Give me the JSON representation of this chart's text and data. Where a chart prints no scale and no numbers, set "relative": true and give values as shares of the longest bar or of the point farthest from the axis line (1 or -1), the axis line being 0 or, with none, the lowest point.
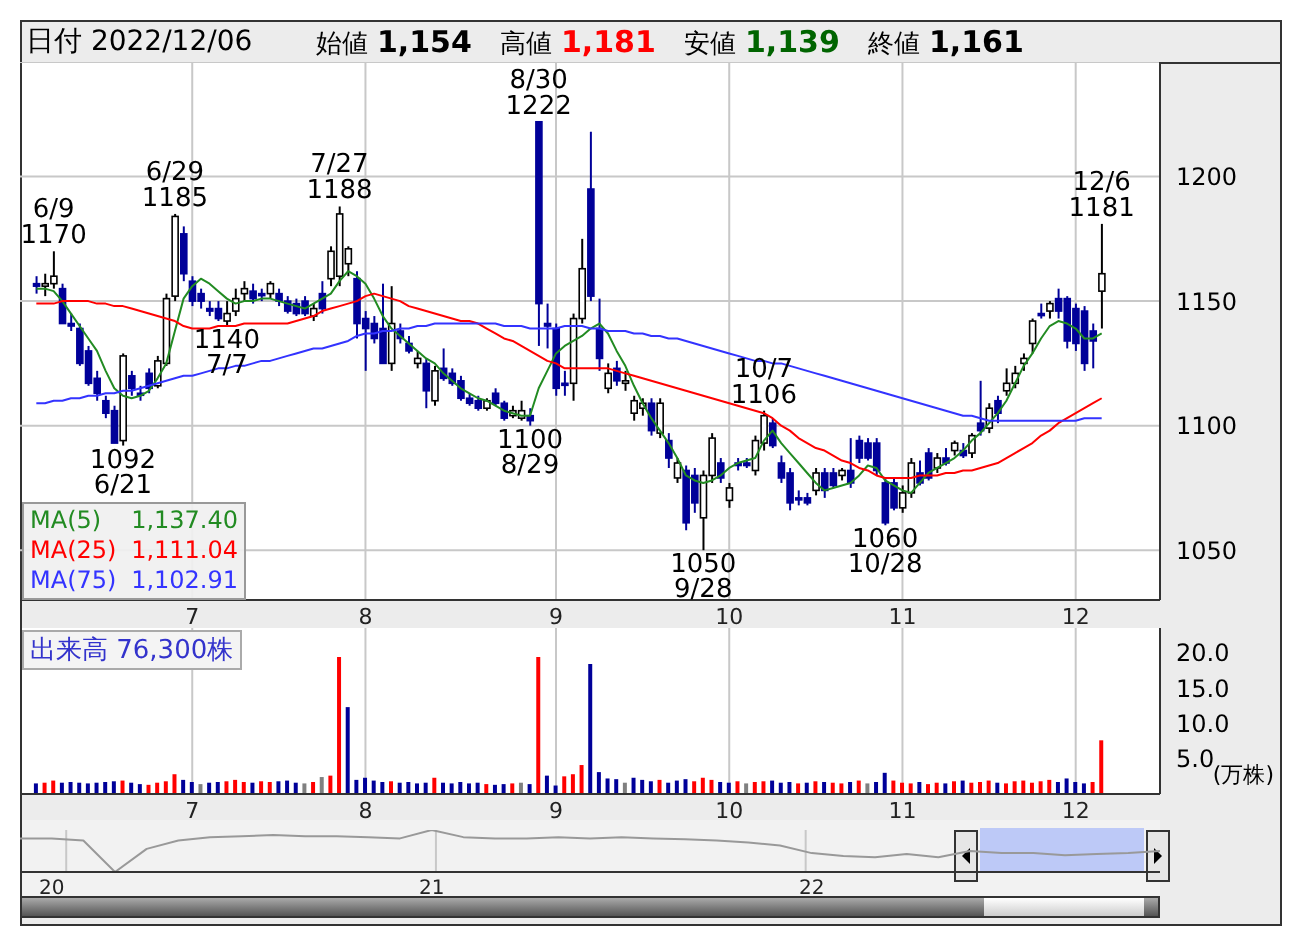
{
  "chart_data": [
    {
      "type": "candlestick",
      "title": "日付 2022/12/06",
      "annotations": [
        "始値 1,154",
        "高値 1,181",
        "安値 1,139",
        "終値 1,161",
        {
          "text": "6/9\n1170",
          "y": 1170
        },
        {
          "text": "1092\n6/21",
          "y": 1092
        },
        {
          "text": "6/29\n1185",
          "y": 1185
        },
        {
          "text": "1140\n7/7",
          "y": 1140
        },
        {
          "text": "7/27\n1188",
          "y": 1188
        },
        {
          "text": "1100\n8/29",
          "y": 1100
        },
        {
          "text": "8/30\n1222",
          "y": 1222
        },
        {
          "text": "1050\n9/28",
          "y": 1050
        },
        {
          "text": "10/7\n1106",
          "y": 1106
        },
        {
          "text": "1060\n10/28",
          "y": 1060
        },
        {
          "text": "12/6\n1181",
          "y": 1181
        }
      ],
      "categories": [
        null,
        null,
        null,
        null,
        null,
        null,
        null,
        null,
        null,
        null,
        null,
        null,
        null,
        null,
        null,
        null,
        null,
        null,
        "7",
        null,
        null,
        null,
        null,
        null,
        null,
        null,
        null,
        null,
        null,
        null,
        null,
        null,
        null,
        null,
        null,
        null,
        null,
        null,
        "8",
        null,
        null,
        null,
        null,
        null,
        null,
        null,
        null,
        null,
        null,
        null,
        null,
        null,
        null,
        null,
        null,
        null,
        null,
        null,
        null,
        null,
        "9",
        null,
        null,
        null,
        null,
        null,
        null,
        null,
        null,
        null,
        null,
        null,
        null,
        null,
        null,
        null,
        null,
        null,
        null,
        null,
        "10",
        null,
        null,
        null,
        null,
        null,
        null,
        null,
        null,
        null,
        null,
        null,
        null,
        null,
        null,
        null,
        null,
        null,
        null,
        null,
        "11",
        null,
        null,
        null,
        null,
        null,
        null,
        null,
        null,
        null,
        null,
        null,
        null,
        null,
        null,
        null,
        null,
        null,
        null,
        null,
        "12",
        null,
        null,
        null
      ],
      "ohlc": [
        [
          1157,
          1160,
          1153,
          1156
        ],
        [
          1156,
          1161,
          1152,
          1157
        ],
        [
          1157,
          1170,
          1155,
          1160
        ],
        [
          1155,
          1157,
          1141,
          1141
        ],
        [
          1141,
          1145,
          1138,
          1140
        ],
        [
          1139,
          1141,
          1124,
          1125
        ],
        [
          1130,
          1132,
          1116,
          1117
        ],
        [
          1119,
          1122,
          1110,
          1113
        ],
        [
          1110,
          1112,
          1103,
          1105
        ],
        [
          1106,
          1108,
          1093,
          1093
        ],
        [
          1094,
          1129,
          1092,
          1128
        ],
        [
          1120,
          1122,
          1112,
          1115
        ],
        [
          1113,
          1116,
          1110,
          1113
        ],
        [
          1121,
          1123,
          1113,
          1115
        ],
        [
          1116,
          1128,
          1115,
          1126
        ],
        [
          1125,
          1153,
          1124,
          1151
        ],
        [
          1152,
          1185,
          1150,
          1184
        ],
        [
          1177,
          1180,
          1158,
          1161
        ],
        [
          1158,
          1160,
          1148,
          1150
        ],
        [
          1153,
          1155,
          1147,
          1150
        ],
        [
          1147,
          1150,
          1144,
          1146
        ],
        [
          1147,
          1150,
          1142,
          1143
        ],
        [
          1142,
          1150,
          1140,
          1145
        ],
        [
          1146,
          1155,
          1144,
          1151
        ],
        [
          1153,
          1158,
          1150,
          1155
        ],
        [
          1154,
          1157,
          1149,
          1151
        ],
        [
          1153,
          1155,
          1150,
          1153
        ],
        [
          1153,
          1158,
          1151,
          1157
        ],
        [
          1153,
          1155,
          1148,
          1150
        ],
        [
          1150,
          1152,
          1145,
          1146
        ],
        [
          1149,
          1151,
          1144,
          1145
        ],
        [
          1150,
          1152,
          1144,
          1145
        ],
        [
          1144,
          1149,
          1142,
          1147
        ],
        [
          1153,
          1158,
          1145,
          1147
        ],
        [
          1159,
          1172,
          1156,
          1170
        ],
        [
          1160,
          1188,
          1156,
          1185
        ],
        [
          1165,
          1172,
          1160,
          1171
        ],
        [
          1159,
          1162,
          1135,
          1141
        ],
        [
          1143,
          1146,
          1122,
          1139
        ],
        [
          1141,
          1144,
          1133,
          1135
        ],
        [
          1139,
          1157,
          1125,
          1125
        ],
        [
          1125,
          1156,
          1122,
          1141
        ],
        [
          1138,
          1141,
          1133,
          1135
        ],
        [
          1133,
          1136,
          1129,
          1130
        ],
        [
          1125,
          1130,
          1123,
          1127
        ],
        [
          1125,
          1127,
          1107,
          1114
        ],
        [
          1110,
          1124,
          1108,
          1122
        ],
        [
          1123,
          1131,
          1118,
          1119
        ],
        [
          1121,
          1123,
          1116,
          1117
        ],
        [
          1118,
          1120,
          1110,
          1111
        ],
        [
          1111,
          1113,
          1108,
          1109
        ],
        [
          1110,
          1112,
          1106,
          1107
        ],
        [
          1107,
          1111,
          1106,
          1110
        ],
        [
          1113,
          1115,
          1108,
          1109
        ],
        [
          1109,
          1110,
          1102,
          1103
        ],
        [
          1104,
          1108,
          1103,
          1106
        ],
        [
          1103,
          1110,
          1102,
          1106
        ],
        [
          1104,
          1107,
          1100,
          1102
        ],
        [
          1222,
          1222,
          1132,
          1149
        ],
        [
          1141,
          1149,
          1131,
          1140
        ],
        [
          1139,
          1141,
          1112,
          1115
        ],
        [
          1117,
          1122,
          1112,
          1117
        ],
        [
          1117,
          1145,
          1110,
          1143
        ],
        [
          1143,
          1175,
          1141,
          1163
        ],
        [
          1195,
          1218,
          1150,
          1152
        ],
        [
          1139,
          1151,
          1122,
          1127
        ],
        [
          1115,
          1125,
          1113,
          1121
        ],
        [
          1123,
          1126,
          1116,
          1118
        ],
        [
          1117,
          1122,
          1114,
          1118
        ],
        [
          1105,
          1112,
          1102,
          1110
        ],
        [
          1107,
          1111,
          1104,
          1109
        ],
        [
          1109,
          1111,
          1096,
          1098
        ],
        [
          1097,
          1111,
          1095,
          1109
        ],
        [
          1094,
          1097,
          1083,
          1087
        ],
        [
          1079,
          1087,
          1077,
          1085
        ],
        [
          1082,
          1084,
          1058,
          1061
        ],
        [
          1080,
          1083,
          1065,
          1069
        ],
        [
          1063,
          1082,
          1050,
          1080
        ],
        [
          1080,
          1097,
          1077,
          1095
        ],
        [
          1085,
          1087,
          1077,
          1079
        ],
        [
          1070,
          1077,
          1067,
          1075
        ],
        [
          1085,
          1087,
          1082,
          1084
        ],
        [
          1085,
          1087,
          1083,
          1084
        ],
        [
          1082,
          1096,
          1080,
          1094
        ],
        [
          1093,
          1106,
          1090,
          1104
        ],
        [
          1101,
          1103,
          1091,
          1092
        ],
        [
          1085,
          1088,
          1077,
          1079
        ],
        [
          1081,
          1083,
          1066,
          1069
        ],
        [
          1071,
          1074,
          1068,
          1071
        ],
        [
          1071,
          1073,
          1068,
          1069
        ],
        [
          1074,
          1083,
          1072,
          1081
        ],
        [
          1081,
          1083,
          1071,
          1074
        ],
        [
          1081,
          1083,
          1075,
          1076
        ],
        [
          1080,
          1083,
          1078,
          1082
        ],
        [
          1082,
          1095,
          1075,
          1077
        ],
        [
          1094,
          1096,
          1085,
          1087
        ],
        [
          1093,
          1095,
          1086,
          1087
        ],
        [
          1093,
          1095,
          1080,
          1082
        ],
        [
          1077,
          1079,
          1060,
          1061
        ],
        [
          1077,
          1079,
          1066,
          1067
        ],
        [
          1067,
          1076,
          1065,
          1073
        ],
        [
          1073,
          1087,
          1071,
          1085
        ],
        [
          1081,
          1086,
          1076,
          1077
        ],
        [
          1089,
          1091,
          1078,
          1079
        ],
        [
          1083,
          1089,
          1081,
          1087
        ],
        [
          1087,
          1091,
          1084,
          1085
        ],
        [
          1090,
          1094,
          1088,
          1093
        ],
        [
          1090,
          1093,
          1087,
          1088
        ],
        [
          1089,
          1097,
          1087,
          1096
        ],
        [
          1101,
          1118,
          1096,
          1098
        ],
        [
          1099,
          1109,
          1097,
          1107
        ],
        [
          1110,
          1112,
          1101,
          1105
        ],
        [
          1114,
          1123,
          1112,
          1117
        ],
        [
          1117,
          1124,
          1115,
          1121
        ],
        [
          1125,
          1129,
          1122,
          1127
        ],
        [
          1133,
          1143,
          1129,
          1142
        ],
        [
          1145,
          1149,
          1143,
          1145
        ],
        [
          1146,
          1150,
          1143,
          1149
        ],
        [
          1151,
          1155,
          1143,
          1146
        ],
        [
          1151,
          1152,
          1131,
          1134
        ],
        [
          1147,
          1149,
          1130,
          1133
        ],
        [
          1146,
          1148,
          1122,
          1125
        ],
        [
          1138,
          1141,
          1123,
          1134
        ],
        [
          1154,
          1181,
          1139,
          1161
        ]
      ],
      "series": [
        {
          "name": "MA(5) 1,137.40",
          "type": "line",
          "color": "#228b22",
          "values": [
            1155,
            1155,
            1154,
            1150,
            1145,
            1140,
            1135,
            1130,
            1122,
            1115,
            1112,
            1111,
            1112,
            1114,
            1119,
            1125,
            1138,
            1151,
            1156,
            1159,
            1157,
            1154,
            1151,
            1149,
            1150,
            1150,
            1151,
            1151,
            1150,
            1149,
            1148,
            1147,
            1149,
            1151,
            1153,
            1158,
            1162,
            1160,
            1157,
            1151,
            1144,
            1139,
            1136,
            1133,
            1130,
            1127,
            1125,
            1121,
            1118,
            1115,
            1113,
            1111,
            1110,
            1108,
            1106,
            1105,
            1104,
            1104,
            1115,
            1122,
            1129,
            1132,
            1134,
            1136,
            1139,
            1141,
            1137,
            1130,
            1124,
            1116,
            1109,
            1103,
            1098,
            1093,
            1087,
            1080,
            1078,
            1077,
            1078,
            1080,
            1083,
            1085,
            1086,
            1087,
            1094,
            1098,
            1093,
            1089,
            1085,
            1081,
            1077,
            1074,
            1075,
            1076,
            1077,
            1080,
            1084,
            1083,
            1078,
            1076,
            1074,
            1073,
            1077,
            1081,
            1083,
            1085,
            1087,
            1090,
            1094,
            1097,
            1101,
            1105,
            1110,
            1117,
            1124,
            1129,
            1135,
            1140,
            1142,
            1141,
            1139,
            1135,
            1135,
            1137
          ]
        },
        {
          "name": "MA(25) 1,111.04",
          "type": "line",
          "color": "#ff0000",
          "values": [
            1149,
            1149,
            1149,
            1150,
            1150,
            1150,
            1150,
            1149,
            1149,
            1148,
            1148,
            1147,
            1146,
            1145,
            1144,
            1143,
            1142,
            1140,
            1139,
            1139,
            1139,
            1140,
            1140,
            1140,
            1141,
            1141,
            1141,
            1141,
            1141,
            1141,
            1142,
            1143,
            1144,
            1146,
            1147,
            1148,
            1149,
            1150,
            1152,
            1153,
            1152,
            1151,
            1150,
            1148,
            1147,
            1146,
            1145,
            1144,
            1143,
            1142,
            1142,
            1141,
            1139,
            1137,
            1135,
            1134,
            1132,
            1130,
            1128,
            1126,
            1125,
            1123,
            1123,
            1123,
            1123,
            1123,
            1123,
            1122,
            1121,
            1120,
            1119,
            1118,
            1117,
            1116,
            1115,
            1114,
            1113,
            1112,
            1111,
            1110,
            1109,
            1108,
            1107,
            1106,
            1105,
            1103,
            1100,
            1098,
            1095,
            1093,
            1091,
            1090,
            1088,
            1086,
            1085,
            1083,
            1082,
            1080,
            1079,
            1079,
            1079,
            1079,
            1080,
            1080,
            1080,
            1081,
            1081,
            1082,
            1082,
            1083,
            1084,
            1085,
            1087,
            1089,
            1091,
            1093,
            1096,
            1098,
            1101,
            1103,
            1105,
            1107,
            1109,
            1111
          ]
        },
        {
          "name": "MA(75) 1,102.91",
          "type": "line",
          "color": "#3333ff",
          "values": [
            1109,
            1109,
            1110,
            1110,
            1111,
            1111,
            1112,
            1112,
            1113,
            1113,
            1114,
            1114,
            1115,
            1116,
            1117,
            1118,
            1119,
            1120,
            1120,
            1121,
            1122,
            1123,
            1123,
            1124,
            1124,
            1125,
            1126,
            1126,
            1127,
            1128,
            1129,
            1130,
            1131,
            1131,
            1132,
            1133,
            1134,
            1136,
            1137,
            1137,
            1138,
            1138,
            1139,
            1139,
            1140,
            1140,
            1141,
            1141,
            1141,
            1141,
            1141,
            1141,
            1141,
            1141,
            1140,
            1140,
            1140,
            1139,
            1139,
            1139,
            1139,
            1140,
            1140,
            1140,
            1139,
            1139,
            1138,
            1138,
            1138,
            1137,
            1137,
            1136,
            1136,
            1135,
            1135,
            1134,
            1133,
            1132,
            1131,
            1130,
            1129,
            1128,
            1127,
            1126,
            1126,
            1125,
            1125,
            1124,
            1123,
            1122,
            1121,
            1120,
            1119,
            1118,
            1117,
            1116,
            1115,
            1114,
            1113,
            1112,
            1111,
            1110,
            1109,
            1108,
            1107,
            1106,
            1105,
            1104,
            1104,
            1103,
            1102,
            1102,
            1102,
            1102,
            1102,
            1102,
            1102,
            1102,
            1102,
            1102,
            1102,
            1103,
            1103,
            1103
          ]
        }
      ],
      "ylim": [
        1030,
        1246
      ],
      "yticks": [
        1050,
        1100,
        1150,
        1200
      ],
      "grid": true,
      "legend": "bottom left"
    },
    {
      "type": "bar",
      "title": "出来高 76,300株",
      "ylabel": "(万株)",
      "categories": [
        null,
        null,
        null,
        null,
        null,
        null,
        null,
        null,
        null,
        null,
        null,
        null,
        null,
        null,
        null,
        null,
        null,
        null,
        "7",
        null,
        null,
        null,
        null,
        null,
        null,
        null,
        null,
        null,
        null,
        null,
        null,
        null,
        null,
        null,
        null,
        null,
        null,
        null,
        "8",
        null,
        null,
        null,
        null,
        null,
        null,
        null,
        null,
        null,
        null,
        null,
        null,
        null,
        null,
        null,
        null,
        null,
        null,
        null,
        null,
        null,
        "9",
        null,
        null,
        null,
        null,
        null,
        null,
        null,
        null,
        null,
        null,
        null,
        null,
        null,
        null,
        null,
        null,
        null,
        null,
        null,
        "10",
        null,
        null,
        null,
        null,
        null,
        null,
        null,
        null,
        null,
        null,
        null,
        null,
        null,
        null,
        null,
        null,
        null,
        null,
        null,
        "11",
        null,
        null,
        null,
        null,
        null,
        null,
        null,
        null,
        null,
        null,
        null,
        null,
        null,
        null,
        null,
        null,
        null,
        null,
        null,
        "12",
        null,
        null,
        null
      ],
      "values": [
        1.5,
        1.6,
        1.9,
        1.6,
        1.7,
        1.6,
        1.5,
        1.6,
        1.7,
        1.8,
        1.9,
        1.6,
        1.4,
        1.3,
        1.6,
        1.8,
        2.8,
        2.0,
        1.7,
        1.4,
        1.6,
        1.7,
        1.8,
        2.0,
        1.7,
        1.6,
        1.8,
        1.7,
        1.8,
        1.9,
        1.6,
        1.5,
        1.7,
        2.4,
        2.6,
        19.4,
        12.3,
        2.0,
        2.3,
        1.9,
        1.7,
        1.8,
        1.6,
        1.7,
        1.5,
        1.6,
        2.3,
        1.6,
        1.5,
        1.7,
        1.5,
        1.6,
        1.4,
        1.3,
        1.4,
        1.5,
        1.6,
        1.4,
        19.4,
        2.6,
        1.2,
        2.5,
        2.8,
        4.1,
        18.4,
        3.1,
        2.2,
        2.1,
        1.6,
        2.3,
        2.0,
        1.8,
        2.0,
        1.6,
        1.9,
        2.1,
        1.8,
        2.3,
        2.0,
        1.7,
        1.6,
        1.8,
        1.5,
        1.7,
        1.8,
        1.9,
        1.6,
        1.7,
        1.5,
        1.6,
        1.8,
        1.7,
        1.6,
        1.5,
        1.7,
        1.9,
        1.5,
        1.7,
        3.0,
        1.9,
        1.6,
        1.5,
        1.7,
        1.4,
        1.6,
        1.5,
        1.8,
        1.9,
        1.6,
        1.7,
        1.9,
        1.6,
        1.5,
        1.8,
        1.9,
        1.6,
        1.8,
        2.0,
        1.7,
        2.2,
        1.7,
        1.5,
        1.7,
        7.6
      ],
      "colors": [
        "#000099",
        "#ff0000",
        "#ff0000",
        "#000099",
        "#000099",
        "#000099",
        "#000099",
        "#000099",
        "#000099",
        "#000099",
        "#ff0000",
        "#000099",
        "#000099",
        "#ff0000",
        "#ff0000",
        "#ff0000",
        "#ff0000",
        "#000099",
        "#000099",
        "#808080",
        "#000099",
        "#000099",
        "#ff0000",
        "#ff0000",
        "#ff0000",
        "#000099",
        "#ff0000",
        "#ff0000",
        "#000099",
        "#000099",
        "#000099",
        "#808080",
        "#ff0000",
        "#808080",
        "#ff0000",
        "#ff0000",
        "#000099",
        "#000099",
        "#000099",
        "#000099",
        "#000099",
        "#ff0000",
        "#000099",
        "#000099",
        "#000099",
        "#000099",
        "#ff0000",
        "#000099",
        "#000099",
        "#000099",
        "#000099",
        "#000099",
        "#ff0000",
        "#000099",
        "#000099",
        "#ff0000",
        "#808080",
        "#000099",
        "#ff0000",
        "#000099",
        "#000099",
        "#ff0000",
        "#ff0000",
        "#ff0000",
        "#000099",
        "#000099",
        "#000099",
        "#000099",
        "#808080",
        "#000099",
        "#000099",
        "#000099",
        "#ff0000",
        "#000099",
        "#000099",
        "#000099",
        "#ff0000",
        "#ff0000",
        "#ff0000",
        "#000099",
        "#000099",
        "#ff0000",
        "#808080",
        "#ff0000",
        "#ff0000",
        "#000099",
        "#000099",
        "#000099",
        "#ff0000",
        "#000099",
        "#ff0000",
        "#000099",
        "#ff0000",
        "#ff0000",
        "#000099",
        "#ff0000",
        "#808080",
        "#000099",
        "#000099",
        "#ff0000",
        "#ff0000",
        "#ff0000",
        "#000099",
        "#ff0000",
        "#ff0000",
        "#000099",
        "#ff0000",
        "#000099",
        "#ff0000",
        "#ff0000",
        "#ff0000",
        "#000099",
        "#ff0000",
        "#ff0000",
        "#ff0000",
        "#ff0000",
        "#ff0000",
        "#ff0000",
        "#000099",
        "#000099",
        "#000099",
        "#000099",
        "#ff0000",
        "#ff0000"
      ],
      "ylim": [
        0,
        23.5
      ],
      "yticks": [
        {
          "value": 5,
          "label": "5.0"
        },
        {
          "value": 10,
          "label": "10.0"
        },
        {
          "value": 15,
          "label": "15.0"
        },
        {
          "value": 20,
          "label": "20.0"
        }
      ],
      "grid": "x"
    },
    {
      "type": "line",
      "relative": true,
      "color": "#999999",
      "categories": [
        null,
        "20",
        null,
        null,
        null,
        null,
        null,
        null,
        null,
        null,
        null,
        null,
        null,
        "21",
        null,
        null,
        null,
        null,
        null,
        null,
        null,
        null,
        null,
        null,
        null,
        "22",
        null,
        null,
        null,
        null,
        null,
        null,
        null,
        null,
        null,
        null,
        null
      ],
      "values": [
        0.8,
        0.8,
        0.75,
        0,
        0.55,
        0.75,
        0.83,
        0.85,
        0.88,
        0.85,
        0.85,
        0.83,
        0.8,
        1,
        0.83,
        0.8,
        0.8,
        0.83,
        0.8,
        0.83,
        0.8,
        0.78,
        0.75,
        0.7,
        0.63,
        0.45,
        0.38,
        0.35,
        0.43,
        0.35,
        0.5,
        0.45,
        0.45,
        0.4,
        0.43,
        0.45,
        0.5
      ],
      "grid": "x"
    }
  ]
}
